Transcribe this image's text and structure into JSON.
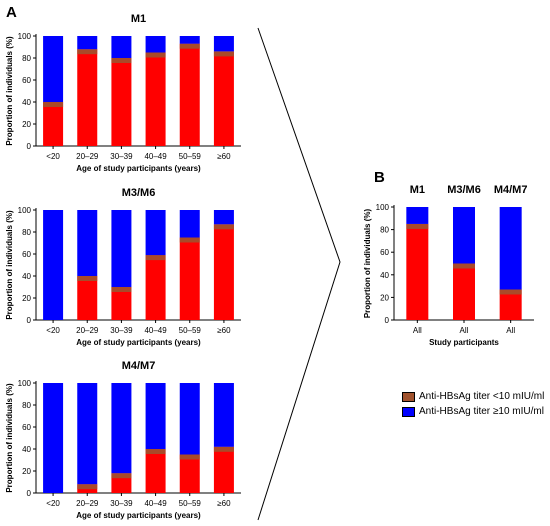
{
  "panels": {
    "A": "A",
    "B": "B"
  },
  "colors": {
    "low": "#a0522d",
    "high": "#0000ff",
    "bar_fill": "#ff0000"
  },
  "legend": {
    "items": [
      {
        "label": "Anti-HBsAg titer <10 mIU/ml",
        "color": "#a0522d"
      },
      {
        "label": "Anti-HBsAg titer ≥10 mIU/ml",
        "color": "#0000ff"
      }
    ]
  },
  "chart_data": [
    {
      "type": "bar",
      "stacked": true,
      "panel": "A",
      "title": "M1",
      "ylabel": "Proportion of individuals (%)",
      "xlabel": "Age of study participants (years)",
      "categories": [
        "<20",
        "20–29",
        "30–39",
        "40–49",
        "50–59",
        "≥60"
      ],
      "ylim": [
        0,
        100
      ],
      "yticks": [
        0,
        20,
        40,
        60,
        80,
        100
      ],
      "series": [
        {
          "color": "#a0522d",
          "values": [
            40,
            88,
            80,
            85,
            93,
            86
          ]
        },
        {
          "color": "#0000ff",
          "values": [
            60,
            12,
            20,
            15,
            7,
            14
          ]
        }
      ]
    },
    {
      "type": "bar",
      "stacked": true,
      "panel": "A",
      "title": "M3/M6",
      "ylabel": "Proportion of individuals (%)",
      "xlabel": "Age of study participants (years)",
      "categories": [
        "<20",
        "20–29",
        "30–39",
        "40–49",
        "50–59",
        "≥60"
      ],
      "ylim": [
        0,
        100
      ],
      "yticks": [
        0,
        20,
        40,
        60,
        80,
        100
      ],
      "series": [
        {
          "color": "#a0522d",
          "values": [
            0,
            40,
            30,
            59,
            75,
            87
          ]
        },
        {
          "color": "#0000ff",
          "values": [
            100,
            60,
            70,
            41,
            25,
            13
          ]
        }
      ]
    },
    {
      "type": "bar",
      "stacked": true,
      "panel": "A",
      "title": "M4/M7",
      "ylabel": "Proportion of individuals (%)",
      "xlabel": "Age of study participants (years)",
      "categories": [
        "<20",
        "20–29",
        "30–39",
        "40–49",
        "50–59",
        "≥60"
      ],
      "ylim": [
        0,
        100
      ],
      "yticks": [
        0,
        20,
        40,
        60,
        80,
        100
      ],
      "series": [
        {
          "color": "#a0522d",
          "values": [
            0,
            8,
            18,
            40,
            35,
            42
          ]
        },
        {
          "color": "#0000ff",
          "values": [
            100,
            92,
            82,
            60,
            65,
            58
          ]
        }
      ]
    },
    {
      "type": "bar",
      "stacked": true,
      "panel": "B",
      "titles": [
        "M1",
        "M3/M6",
        "M4/M7"
      ],
      "ylabel": "Proportion of individuals (%)",
      "xlabel": "Study participants",
      "categories": [
        "All",
        "All",
        "All"
      ],
      "ylim": [
        0,
        100
      ],
      "yticks": [
        0,
        20,
        40,
        60,
        80,
        100
      ],
      "series": [
        {
          "color": "#a0522d",
          "values": [
            85,
            50,
            27
          ]
        },
        {
          "color": "#0000ff",
          "values": [
            15,
            50,
            73
          ]
        }
      ]
    }
  ]
}
